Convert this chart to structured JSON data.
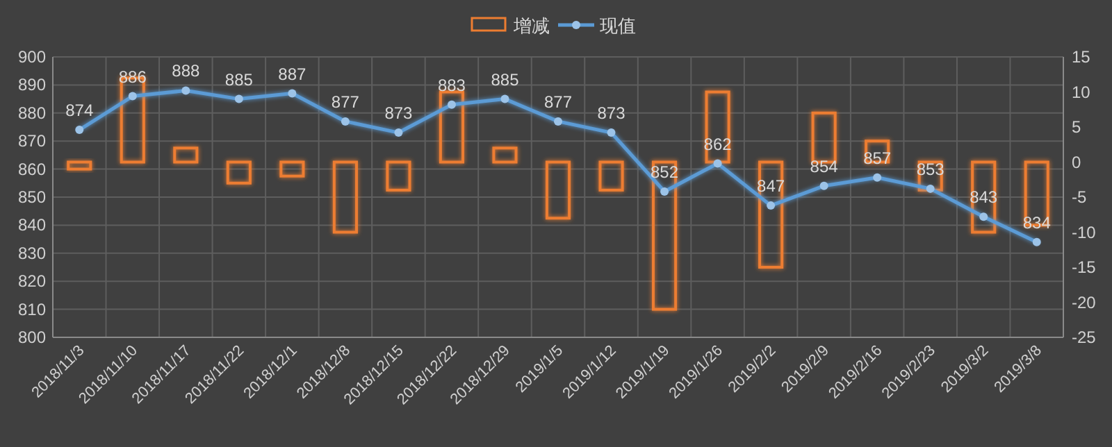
{
  "chart_data": {
    "type": "bar",
    "categories": [
      "2018/11/3",
      "2018/11/10",
      "2018/11/17",
      "2018/11/22",
      "2018/12/1",
      "2018/12/8",
      "2018/12/15",
      "2018/12/22",
      "2018/12/29",
      "2019/1/5",
      "2019/1/12",
      "2019/1/19",
      "2019/1/26",
      "2019/2/2",
      "2019/2/9",
      "2019/2/16",
      "2019/2/23",
      "2019/3/2",
      "2019/3/8"
    ],
    "series": [
      {
        "name": "增减",
        "type": "bar",
        "axis": "y2",
        "color": "#ed7d31",
        "values": [
          -1,
          12,
          2,
          -3,
          -2,
          -10,
          -4,
          10,
          2,
          -8,
          -4,
          -21,
          10,
          -15,
          7,
          3,
          -4,
          -10,
          -9
        ]
      },
      {
        "name": "现值",
        "type": "line",
        "color": "#5b9bd5",
        "marker": "circle",
        "line_style": "solid",
        "values": [
          874,
          886,
          888,
          885,
          887,
          877,
          873,
          883,
          885,
          877,
          873,
          852,
          862,
          847,
          854,
          857,
          853,
          843,
          834
        ],
        "value_labels": [
          "874",
          "886",
          "888",
          "885",
          "887",
          "877",
          "873",
          "883",
          "885",
          "877",
          "873",
          "852",
          "862",
          "847",
          "854",
          "857",
          "853",
          "843",
          "834"
        ]
      }
    ],
    "ylim": [
      800,
      900
    ],
    "yticks": [
      800,
      810,
      820,
      830,
      840,
      850,
      860,
      870,
      880,
      890,
      900
    ],
    "y2lim": [
      -25,
      15
    ],
    "y2ticks": [
      -25,
      -20,
      -15,
      -10,
      -5,
      0,
      5,
      10,
      15
    ],
    "grid": true,
    "legend": "top"
  }
}
